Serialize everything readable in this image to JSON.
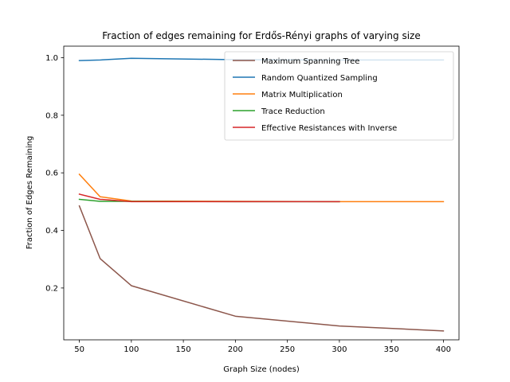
{
  "chart_data": {
    "type": "line",
    "title": "Fraction of edges remaining for Erdős-Rényi graphs of varying size",
    "xlabel": "Graph Size (nodes)",
    "ylabel": "Fraction of Edges Remaining",
    "xlim": [
      35,
      415
    ],
    "ylim": [
      0.02,
      1.04
    ],
    "xticks": [
      50,
      100,
      150,
      200,
      250,
      300,
      350,
      400
    ],
    "xtick_labels": [
      "50",
      "100",
      "150",
      "200",
      "250",
      "300",
      "350",
      "400"
    ],
    "yticks": [
      0.2,
      0.4,
      0.6,
      0.8,
      1.0
    ],
    "ytick_labels": [
      "0.2",
      "0.4",
      "0.6",
      "0.8",
      "1.0"
    ],
    "grid": false,
    "legend_position": "top-right",
    "series": [
      {
        "name": "Maximum Spanning Tree",
        "color": "#8c564b",
        "x": [
          50,
          70,
          100,
          200,
          300,
          400
        ],
        "y": [
          0.485,
          0.302,
          0.208,
          0.102,
          0.068,
          0.051
        ]
      },
      {
        "name": "Random Quantized Sampling",
        "color": "#1f77b4",
        "x": [
          50,
          70,
          100,
          200,
          300,
          400
        ],
        "y": [
          0.99,
          0.992,
          0.998,
          0.993,
          0.992,
          0.992
        ]
      },
      {
        "name": "Matrix Multiplication",
        "color": "#ff7f0e",
        "x": [
          50,
          70,
          100,
          200,
          300,
          400
        ],
        "y": [
          0.595,
          0.517,
          0.502,
          0.501,
          0.5,
          0.5
        ]
      },
      {
        "name": "Trace Reduction",
        "color": "#2ca02c",
        "x": [
          50,
          70,
          100,
          200,
          300
        ],
        "y": [
          0.508,
          0.501,
          0.501,
          0.5,
          0.5
        ]
      },
      {
        "name": "Effective Resistances with Inverse",
        "color": "#d62728",
        "x": [
          50,
          70,
          100,
          200,
          300
        ],
        "y": [
          0.526,
          0.508,
          0.5,
          0.5,
          0.5
        ]
      }
    ]
  }
}
